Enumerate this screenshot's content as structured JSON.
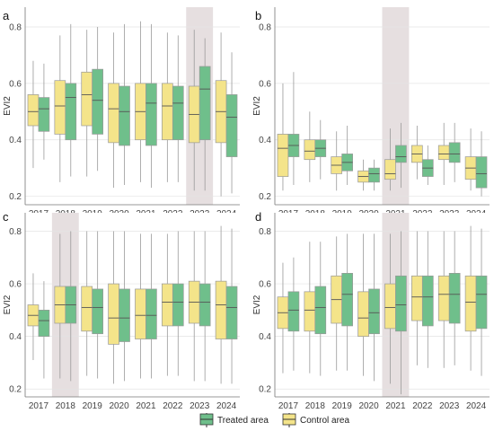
{
  "legend": {
    "items": [
      {
        "label": "Treated area",
        "color": "#6fbf8b"
      },
      {
        "label": "Control area",
        "color": "#f4e48a"
      }
    ]
  },
  "chart_data": [
    {
      "type": "box",
      "panel_label": "a",
      "ylabel": "EVI2",
      "ylim": [
        0.17,
        0.87
      ],
      "yticks": [
        0.2,
        0.4,
        0.6,
        0.8
      ],
      "years": [
        "2017",
        "2018",
        "2019",
        "2020",
        "2021",
        "2022",
        "2023",
        "2024"
      ],
      "highlight_year": "2023",
      "series": [
        {
          "name": "Control area",
          "boxes": [
            [
              0.3,
              0.45,
              0.5,
              0.56,
              0.68
            ],
            [
              0.25,
              0.42,
              0.52,
              0.61,
              0.77
            ],
            [
              0.27,
              0.45,
              0.56,
              0.64,
              0.79
            ],
            [
              0.23,
              0.39,
              0.51,
              0.6,
              0.78
            ],
            [
              0.25,
              0.4,
              0.5,
              0.6,
              0.82
            ],
            [
              0.25,
              0.4,
              0.52,
              0.6,
              0.78
            ],
            [
              0.22,
              0.39,
              0.49,
              0.59,
              0.79
            ],
            [
              0.2,
              0.39,
              0.5,
              0.61,
              0.78
            ]
          ]
        },
        {
          "name": "Treated area",
          "boxes": [
            [
              0.33,
              0.43,
              0.51,
              0.55,
              0.67
            ],
            [
              0.27,
              0.4,
              0.55,
              0.6,
              0.81
            ],
            [
              0.29,
              0.42,
              0.54,
              0.65,
              0.8
            ],
            [
              0.24,
              0.38,
              0.5,
              0.59,
              0.81
            ],
            [
              0.23,
              0.38,
              0.53,
              0.6,
              0.81
            ],
            [
              0.25,
              0.4,
              0.53,
              0.59,
              0.77
            ],
            [
              0.22,
              0.4,
              0.58,
              0.66,
              0.76
            ],
            [
              0.21,
              0.34,
              0.48,
              0.56,
              0.71
            ]
          ]
        }
      ]
    },
    {
      "type": "box",
      "panel_label": "b",
      "ylabel": "EVI2",
      "ylim": [
        0.17,
        0.87
      ],
      "yticks": [
        0.2,
        0.4,
        0.6,
        0.8
      ],
      "years": [
        "2017",
        "2018",
        "2019",
        "2020",
        "2021",
        "2022",
        "2023",
        "2024"
      ],
      "highlight_year": "2021",
      "series": [
        {
          "name": "Control area",
          "boxes": [
            [
              0.22,
              0.27,
              0.37,
              0.42,
              0.6
            ],
            [
              0.25,
              0.33,
              0.36,
              0.4,
              0.5
            ],
            [
              0.22,
              0.28,
              0.31,
              0.34,
              0.43
            ],
            [
              0.22,
              0.25,
              0.27,
              0.29,
              0.33
            ],
            [
              0.22,
              0.26,
              0.28,
              0.33,
              0.44
            ],
            [
              0.26,
              0.32,
              0.35,
              0.38,
              0.45
            ],
            [
              0.24,
              0.33,
              0.35,
              0.38,
              0.46
            ],
            [
              0.22,
              0.26,
              0.3,
              0.34,
              0.44
            ]
          ]
        },
        {
          "name": "Treated area",
          "boxes": [
            [
              0.24,
              0.34,
              0.38,
              0.42,
              0.64
            ],
            [
              0.26,
              0.34,
              0.37,
              0.4,
              0.47
            ],
            [
              0.24,
              0.29,
              0.32,
              0.35,
              0.45
            ],
            [
              0.22,
              0.25,
              0.28,
              0.3,
              0.33
            ],
            [
              0.23,
              0.32,
              0.34,
              0.38,
              0.46
            ],
            [
              0.24,
              0.27,
              0.3,
              0.33,
              0.38
            ],
            [
              0.25,
              0.32,
              0.35,
              0.39,
              0.46
            ],
            [
              0.2,
              0.23,
              0.28,
              0.34,
              0.43
            ]
          ]
        }
      ]
    },
    {
      "type": "box",
      "panel_label": "c",
      "ylabel": "EVI2",
      "ylim": [
        0.17,
        0.87
      ],
      "yticks": [
        0.2,
        0.4,
        0.6,
        0.8
      ],
      "years": [
        "2017",
        "2018",
        "2019",
        "2020",
        "2021",
        "2022",
        "2023",
        "2024"
      ],
      "highlight_year": "2018",
      "series": [
        {
          "name": "Control area",
          "boxes": [
            [
              0.31,
              0.44,
              0.48,
              0.52,
              0.64
            ],
            [
              0.24,
              0.45,
              0.52,
              0.59,
              0.79
            ],
            [
              0.25,
              0.42,
              0.51,
              0.59,
              0.8
            ],
            [
              0.22,
              0.37,
              0.47,
              0.6,
              0.8
            ],
            [
              0.24,
              0.39,
              0.48,
              0.58,
              0.79
            ],
            [
              0.25,
              0.44,
              0.53,
              0.6,
              0.79
            ],
            [
              0.23,
              0.45,
              0.53,
              0.61,
              0.8
            ],
            [
              0.22,
              0.39,
              0.52,
              0.61,
              0.82
            ]
          ]
        },
        {
          "name": "Treated area",
          "boxes": [
            [
              0.24,
              0.4,
              0.46,
              0.5,
              0.61
            ],
            [
              0.23,
              0.45,
              0.52,
              0.59,
              0.8
            ],
            [
              0.24,
              0.41,
              0.51,
              0.58,
              0.8
            ],
            [
              0.23,
              0.38,
              0.47,
              0.58,
              0.8
            ],
            [
              0.24,
              0.39,
              0.48,
              0.58,
              0.79
            ],
            [
              0.25,
              0.44,
              0.53,
              0.6,
              0.8
            ],
            [
              0.23,
              0.44,
              0.53,
              0.6,
              0.8
            ],
            [
              0.22,
              0.39,
              0.51,
              0.59,
              0.81
            ]
          ]
        }
      ]
    },
    {
      "type": "box",
      "panel_label": "d",
      "ylabel": "EVI2",
      "ylim": [
        0.17,
        0.87
      ],
      "yticks": [
        0.2,
        0.4,
        0.6,
        0.8
      ],
      "years": [
        "2017",
        "2018",
        "2019",
        "2020",
        "2021",
        "2022",
        "2023",
        "2024"
      ],
      "highlight_year": "2021",
      "series": [
        {
          "name": "Control area",
          "boxes": [
            [
              0.26,
              0.43,
              0.49,
              0.55,
              0.68
            ],
            [
              0.26,
              0.42,
              0.5,
              0.57,
              0.76
            ],
            [
              0.27,
              0.45,
              0.54,
              0.63,
              0.78
            ],
            [
              0.25,
              0.4,
              0.47,
              0.57,
              0.79
            ],
            [
              0.22,
              0.43,
              0.51,
              0.6,
              0.79
            ],
            [
              0.29,
              0.46,
              0.55,
              0.63,
              0.8
            ],
            [
              0.28,
              0.46,
              0.56,
              0.63,
              0.8
            ],
            [
              0.27,
              0.42,
              0.53,
              0.63,
              0.82
            ]
          ]
        },
        {
          "name": "Treated area",
          "boxes": [
            [
              0.27,
              0.42,
              0.5,
              0.57,
              0.7
            ],
            [
              0.25,
              0.41,
              0.51,
              0.59,
              0.76
            ],
            [
              0.27,
              0.44,
              0.56,
              0.64,
              0.79
            ],
            [
              0.23,
              0.41,
              0.49,
              0.58,
              0.79
            ],
            [
              0.18,
              0.42,
              0.52,
              0.63,
              0.8
            ],
            [
              0.28,
              0.44,
              0.55,
              0.63,
              0.8
            ],
            [
              0.29,
              0.45,
              0.56,
              0.64,
              0.8
            ],
            [
              0.25,
              0.43,
              0.56,
              0.63,
              0.81
            ]
          ]
        }
      ]
    }
  ]
}
